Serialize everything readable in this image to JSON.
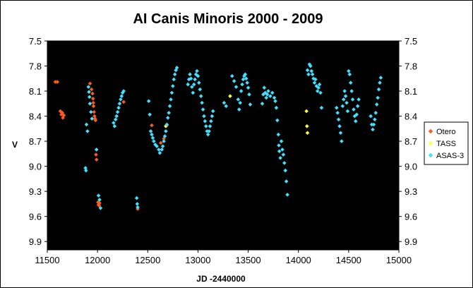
{
  "chart_data": {
    "type": "scatter",
    "title": "AI Canis Minoris 2000 - 2009",
    "xlabel": "JD -2440000",
    "ylabel": "V",
    "xlim": [
      11500,
      15000
    ],
    "ylim": [
      7.5,
      10.0
    ],
    "y_reversed": true,
    "x_ticks": [
      11500,
      12000,
      12500,
      13000,
      13500,
      14000,
      14500,
      15000
    ],
    "x_tick_labels": [
      "11500",
      "12000",
      "12500",
      "13000",
      "13500",
      "14000",
      "14500",
      "15000"
    ],
    "y_ticks": [
      7.5,
      7.8,
      8.1,
      8.4,
      8.7,
      9.0,
      9.3,
      9.6,
      9.9
    ],
    "y_tick_labels": [
      "7.5",
      "7.8",
      "8.1",
      "8.4",
      "8.7",
      "9.0",
      "9.3",
      "9.6",
      "9.9"
    ],
    "y_axis_both_sides": true,
    "plot_background": "#000000",
    "grid": false,
    "legend_position": "right",
    "series": [
      {
        "name": "Otero",
        "color": "#ff5a1e",
        "marker": "diamond",
        "points": [
          [
            11580,
            7.99
          ],
          [
            11600,
            7.99
          ],
          [
            11630,
            8.34
          ],
          [
            11640,
            8.38
          ],
          [
            11650,
            8.36
          ],
          [
            11655,
            8.42
          ],
          [
            11665,
            8.39
          ],
          [
            11925,
            8.01
          ],
          [
            11940,
            8.08
          ],
          [
            11950,
            8.13
          ],
          [
            11955,
            8.19
          ],
          [
            11958,
            8.24
          ],
          [
            11960,
            8.28
          ],
          [
            11965,
            8.35
          ],
          [
            11970,
            8.4
          ],
          [
            11975,
            8.43
          ],
          [
            11980,
            8.45
          ],
          [
            11985,
            8.86
          ],
          [
            11990,
            8.92
          ],
          [
            12005,
            9.43
          ],
          [
            12010,
            9.46
          ],
          [
            12015,
            9.47
          ],
          [
            12020,
            9.44
          ],
          [
            12260,
            8.23
          ],
          [
            12540,
            8.51
          ],
          [
            12630,
            8.72
          ],
          [
            12660,
            8.67
          ],
          [
            12690,
            8.51
          ],
          [
            12400,
            9.51
          ]
        ]
      },
      {
        "name": "TASS",
        "color": "#ffff40",
        "marker": "diamond",
        "points": [
          [
            12680,
            8.52
          ],
          [
            13320,
            8.16
          ],
          [
            14080,
            8.34
          ],
          [
            14085,
            8.52
          ],
          [
            14090,
            8.6
          ]
        ]
      },
      {
        "name": "ASAS-3",
        "color": "#40e0ff",
        "marker": "diamond",
        "points": [
          [
            11880,
            9.02
          ],
          [
            11885,
            9.05
          ],
          [
            11890,
            8.5
          ],
          [
            11900,
            8.58
          ],
          [
            11910,
            8.05
          ],
          [
            11915,
            8.11
          ],
          [
            11920,
            8.17
          ],
          [
            11925,
            8.25
          ],
          [
            11935,
            8.35
          ],
          [
            11945,
            8.43
          ],
          [
            11990,
            8.8
          ],
          [
            12010,
            9.35
          ],
          [
            12020,
            9.4
          ],
          [
            12030,
            9.5
          ],
          [
            12160,
            8.48
          ],
          [
            12170,
            8.52
          ],
          [
            12180,
            8.44
          ],
          [
            12190,
            8.4
          ],
          [
            12200,
            8.35
          ],
          [
            12210,
            8.3
          ],
          [
            12220,
            8.25
          ],
          [
            12230,
            8.2
          ],
          [
            12240,
            8.16
          ],
          [
            12250,
            8.12
          ],
          [
            12260,
            8.1
          ],
          [
            12390,
            9.38
          ],
          [
            12395,
            9.45
          ],
          [
            12400,
            9.49
          ],
          [
            12510,
            8.22
          ],
          [
            12520,
            8.38
          ],
          [
            12530,
            8.58
          ],
          [
            12540,
            8.62
          ],
          [
            12550,
            8.66
          ],
          [
            12560,
            8.7
          ],
          [
            12575,
            8.74
          ],
          [
            12590,
            8.76
          ],
          [
            12610,
            8.8
          ],
          [
            12620,
            8.84
          ],
          [
            12640,
            8.8
          ],
          [
            12650,
            8.76
          ],
          [
            12660,
            8.7
          ],
          [
            12670,
            8.64
          ],
          [
            12680,
            8.58
          ],
          [
            12690,
            8.5
          ],
          [
            12700,
            8.42
          ],
          [
            12710,
            8.36
          ],
          [
            12720,
            8.28
          ],
          [
            12730,
            8.2
          ],
          [
            12740,
            8.12
          ],
          [
            12750,
            8.04
          ],
          [
            12760,
            7.96
          ],
          [
            12770,
            7.9
          ],
          [
            12780,
            7.85
          ],
          [
            12790,
            7.82
          ],
          [
            12900,
            8.02
          ],
          [
            12910,
            7.96
          ],
          [
            12920,
            7.9
          ],
          [
            12930,
            7.95
          ],
          [
            12940,
            8.05
          ],
          [
            12950,
            8.12
          ],
          [
            12960,
            8.02
          ],
          [
            12970,
            7.96
          ],
          [
            12980,
            7.9
          ],
          [
            12990,
            7.86
          ],
          [
            13000,
            7.92
          ],
          [
            13010,
            8.0
          ],
          [
            13020,
            8.08
          ],
          [
            13030,
            8.16
          ],
          [
            13040,
            8.24
          ],
          [
            13050,
            8.32
          ],
          [
            13060,
            8.4
          ],
          [
            13070,
            8.46
          ],
          [
            13080,
            8.52
          ],
          [
            13090,
            8.58
          ],
          [
            13100,
            8.62
          ],
          [
            13110,
            8.58
          ],
          [
            13120,
            8.52
          ],
          [
            13130,
            8.46
          ],
          [
            13140,
            8.4
          ],
          [
            13150,
            8.34
          ],
          [
            13260,
            8.24
          ],
          [
            13280,
            8.28
          ],
          [
            13340,
            7.92
          ],
          [
            13360,
            7.98
          ],
          [
            13380,
            8.05
          ],
          [
            13400,
            8.2
          ],
          [
            13410,
            8.32
          ],
          [
            13420,
            8.24
          ],
          [
            13430,
            8.1
          ],
          [
            13440,
            8.02
          ],
          [
            13450,
            7.96
          ],
          [
            13460,
            7.92
          ],
          [
            13470,
            7.9
          ],
          [
            13480,
            7.95
          ],
          [
            13490,
            8.0
          ],
          [
            13500,
            8.06
          ],
          [
            13510,
            8.14
          ],
          [
            13520,
            8.26
          ],
          [
            13640,
            8.25
          ],
          [
            13650,
            8.14
          ],
          [
            13660,
            8.06
          ],
          [
            13670,
            8.12
          ],
          [
            13680,
            8.18
          ],
          [
            13690,
            8.14
          ],
          [
            13700,
            8.1
          ],
          [
            13720,
            8.16
          ],
          [
            13740,
            8.12
          ],
          [
            13760,
            8.18
          ],
          [
            13770,
            8.22
          ],
          [
            13780,
            8.3
          ],
          [
            13790,
            8.45
          ],
          [
            13800,
            8.62
          ],
          [
            13805,
            8.75
          ],
          [
            13810,
            8.82
          ],
          [
            13820,
            8.9
          ],
          [
            13830,
            8.7
          ],
          [
            13840,
            8.8
          ],
          [
            13850,
            8.86
          ],
          [
            13860,
            8.96
          ],
          [
            13870,
            9.05
          ],
          [
            13880,
            9.18
          ],
          [
            13890,
            9.34
          ],
          [
            14090,
            7.85
          ],
          [
            14100,
            7.9
          ],
          [
            14110,
            7.78
          ],
          [
            14120,
            7.8
          ],
          [
            14130,
            7.86
          ],
          [
            14140,
            7.9
          ],
          [
            14150,
            7.95
          ],
          [
            14160,
            8.0
          ],
          [
            14170,
            7.96
          ],
          [
            14180,
            8.04
          ],
          [
            14190,
            8.1
          ],
          [
            14200,
            8.06
          ],
          [
            14210,
            8.02
          ],
          [
            14220,
            8.12
          ],
          [
            14230,
            8.3
          ],
          [
            14380,
            8.3
          ],
          [
            14390,
            8.36
          ],
          [
            14400,
            8.44
          ],
          [
            14410,
            8.52
          ],
          [
            14420,
            8.6
          ],
          [
            14430,
            8.7
          ],
          [
            14440,
            8.28
          ],
          [
            14450,
            8.2
          ],
          [
            14460,
            8.1
          ],
          [
            14470,
            8.16
          ],
          [
            14480,
            8.24
          ],
          [
            14490,
            8.34
          ],
          [
            14500,
            7.86
          ],
          [
            14510,
            7.9
          ],
          [
            14520,
            8.0
          ],
          [
            14530,
            8.1
          ],
          [
            14540,
            8.2
          ],
          [
            14550,
            8.32
          ],
          [
            14560,
            8.4
          ],
          [
            14570,
            8.46
          ],
          [
            14580,
            8.38
          ],
          [
            14590,
            8.28
          ],
          [
            14600,
            8.2
          ],
          [
            14720,
            8.4
          ],
          [
            14730,
            8.5
          ],
          [
            14740,
            8.56
          ],
          [
            14750,
            8.5
          ],
          [
            14760,
            8.44
          ],
          [
            14770,
            8.36
          ],
          [
            14780,
            8.26
          ],
          [
            14790,
            8.18
          ],
          [
            14800,
            8.08
          ],
          [
            14810,
            8.0
          ],
          [
            14820,
            7.94
          ]
        ]
      }
    ]
  }
}
